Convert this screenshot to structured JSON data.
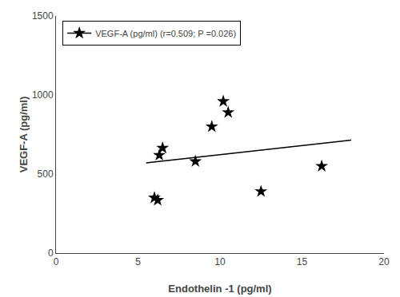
{
  "chart_data": {
    "type": "scatter",
    "xlabel": "Endothelin -1 (pg/ml)",
    "ylabel": "VEGF-A (pg/ml)",
    "xlim": [
      0,
      20
    ],
    "ylim": [
      0,
      1500
    ],
    "xticks": [
      0,
      5,
      10,
      15,
      20
    ],
    "yticks": [
      0,
      500,
      1000,
      1500
    ],
    "legend": "upper left",
    "series": [
      {
        "name": "VEGF-A (pg/ml) (r=0.509; P =0.026)",
        "color": "black",
        "marker": "star",
        "x": [
          6.0,
          6.2,
          6.3,
          6.5,
          8.5,
          9.5,
          10.2,
          10.5,
          12.5,
          16.2
        ],
        "values": [
          350,
          335,
          620,
          665,
          580,
          800,
          960,
          890,
          390,
          550
        ],
        "trend": {
          "x": [
            5.5,
            18.0
          ],
          "values": [
            571.145,
            714.377
          ]
        }
      }
    ]
  }
}
